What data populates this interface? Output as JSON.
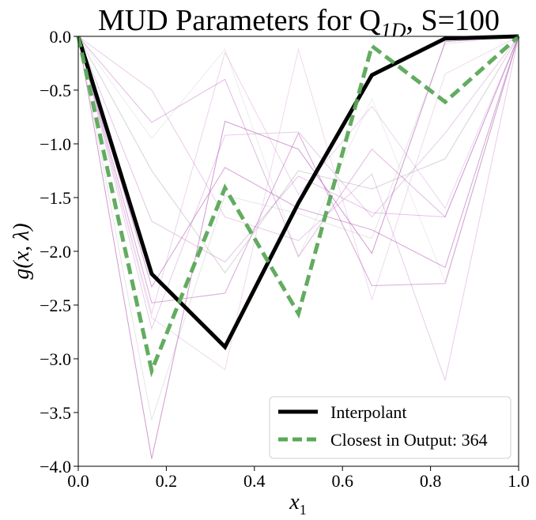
{
  "chart_data": {
    "type": "line",
    "title": "MUD Parameters for Q",
    "title_sub": "1D",
    "title_suffix": ", S=100",
    "xlabel": "x",
    "xlabel_sub": "1",
    "ylabel": "g(x, λ)",
    "xlim": [
      0.0,
      1.0
    ],
    "ylim": [
      -4.0,
      0.0
    ],
    "xticks": [
      0.0,
      0.2,
      0.4,
      0.6,
      0.8,
      1.0
    ],
    "xtick_labels": [
      "0.0",
      "0.2",
      "0.4",
      "0.6",
      "0.8",
      "1.0"
    ],
    "yticks": [
      0.0,
      -0.5,
      -1.0,
      -1.5,
      -2.0,
      -2.5,
      -3.0,
      -3.5,
      -4.0
    ],
    "ytick_labels": [
      "0.0",
      "−0.5",
      "−1.0",
      "−1.5",
      "−2.0",
      "−2.5",
      "−3.0",
      "−3.5",
      "−4.0"
    ],
    "grid": false,
    "legend_position": "bottom-right",
    "x": [
      0.0,
      0.1667,
      0.3333,
      0.5,
      0.6667,
      0.8333,
      1.0
    ],
    "series": [
      {
        "name": "Interpolant",
        "color": "#000000",
        "style": "solid",
        "values": [
          0.0,
          -2.21,
          -2.89,
          -1.55,
          -0.36,
          -0.02,
          0.0
        ]
      },
      {
        "name": "Closest in Output: 364",
        "color": "#5aa857",
        "style": "dashed",
        "values": [
          0.0,
          -3.11,
          -1.41,
          -2.58,
          -0.09,
          -0.61,
          0.0
        ]
      }
    ],
    "background_series_color": "#b455b4",
    "background_series": [
      [
        0.0,
        -3.93,
        -0.79,
        -1.05,
        -2.02,
        -0.05,
        0.0
      ],
      [
        0.0,
        -2.33,
        -1.22,
        -1.6,
        -1.8,
        -2.15,
        0.0
      ],
      [
        0.0,
        -2.48,
        -2.39,
        -0.9,
        -2.32,
        -2.3,
        0.0
      ],
      [
        0.0,
        -1.25,
        -2.2,
        -1.25,
        -1.42,
        -1.14,
        0.0
      ],
      [
        0.0,
        -0.8,
        -0.4,
        -2.05,
        -1.05,
        -1.68,
        0.0
      ],
      [
        0.0,
        -1.72,
        -2.1,
        -1.3,
        -1.64,
        -1.68,
        0.0
      ],
      [
        0.0,
        -2.72,
        -0.92,
        -0.89,
        -1.68,
        -0.9,
        0.0
      ],
      [
        0.0,
        -3.57,
        -1.48,
        -1.65,
        -1.88,
        -0.07,
        0.0
      ],
      [
        0.0,
        -2.58,
        -0.15,
        -1.47,
        -0.65,
        -1.6,
        0.0
      ],
      [
        0.0,
        -2.62,
        -3.1,
        -0.12,
        -2.45,
        -0.35,
        0.0
      ],
      [
        0.0,
        -0.5,
        -1.68,
        -1.9,
        -1.28,
        -3.2,
        0.0
      ],
      [
        0.0,
        -0.95,
        -0.12,
        -2.05,
        -0.58,
        -2.28,
        0.0
      ]
    ]
  }
}
